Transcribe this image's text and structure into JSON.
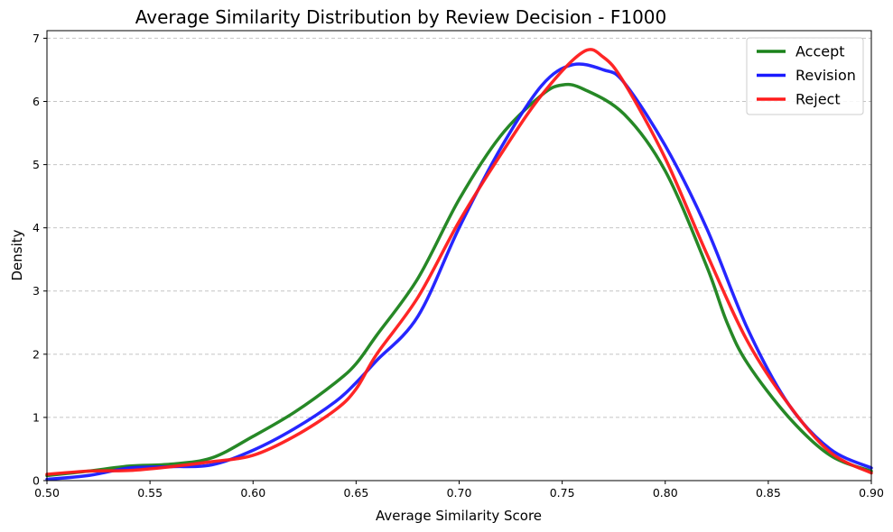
{
  "chart_data": {
    "type": "line",
    "title": "Average Similarity Distribution by Review Decision - F1000",
    "xlabel": "Average Similarity Score",
    "ylabel": "Density",
    "xlim": [
      0.5,
      0.9
    ],
    "ylim": [
      0,
      7.12
    ],
    "xticks": [
      0.5,
      0.55,
      0.6,
      0.65,
      0.7,
      0.75,
      0.8,
      0.85,
      0.9
    ],
    "xtick_labels": [
      "0.50",
      "0.55",
      "0.60",
      "0.65",
      "0.70",
      "0.75",
      "0.80",
      "0.85",
      "0.90"
    ],
    "yticks": [
      0,
      1,
      2,
      3,
      4,
      5,
      6,
      7
    ],
    "ytick_labels": [
      "0",
      "1",
      "2",
      "3",
      "4",
      "5",
      "6",
      "7"
    ],
    "grid": "horizontal-dashed",
    "legend_position": "top-right",
    "series": [
      {
        "name": "Accept",
        "color": "#1a821a",
        "points": [
          [
            0.5,
            0.08
          ],
          [
            0.52,
            0.15
          ],
          [
            0.54,
            0.23
          ],
          [
            0.56,
            0.26
          ],
          [
            0.58,
            0.36
          ],
          [
            0.6,
            0.7
          ],
          [
            0.62,
            1.08
          ],
          [
            0.64,
            1.55
          ],
          [
            0.65,
            1.85
          ],
          [
            0.66,
            2.3
          ],
          [
            0.68,
            3.2
          ],
          [
            0.7,
            4.45
          ],
          [
            0.72,
            5.45
          ],
          [
            0.74,
            6.1
          ],
          [
            0.75,
            6.26
          ],
          [
            0.76,
            6.2
          ],
          [
            0.78,
            5.8
          ],
          [
            0.8,
            4.9
          ],
          [
            0.82,
            3.4
          ],
          [
            0.83,
            2.5
          ],
          [
            0.84,
            1.85
          ],
          [
            0.86,
            1.0
          ],
          [
            0.88,
            0.4
          ],
          [
            0.9,
            0.15
          ]
        ]
      },
      {
        "name": "Revision",
        "color": "#1a1aff",
        "points": [
          [
            0.5,
            0.02
          ],
          [
            0.52,
            0.08
          ],
          [
            0.54,
            0.2
          ],
          [
            0.56,
            0.22
          ],
          [
            0.58,
            0.25
          ],
          [
            0.6,
            0.48
          ],
          [
            0.62,
            0.82
          ],
          [
            0.64,
            1.25
          ],
          [
            0.65,
            1.55
          ],
          [
            0.66,
            1.9
          ],
          [
            0.68,
            2.6
          ],
          [
            0.7,
            4.0
          ],
          [
            0.72,
            5.25
          ],
          [
            0.74,
            6.25
          ],
          [
            0.755,
            6.58
          ],
          [
            0.77,
            6.5
          ],
          [
            0.78,
            6.3
          ],
          [
            0.8,
            5.3
          ],
          [
            0.82,
            4.0
          ],
          [
            0.84,
            2.4
          ],
          [
            0.86,
            1.2
          ],
          [
            0.88,
            0.5
          ],
          [
            0.9,
            0.2
          ]
        ]
      },
      {
        "name": "Reject",
        "color": "#ff1a1a",
        "points": [
          [
            0.5,
            0.1
          ],
          [
            0.52,
            0.15
          ],
          [
            0.54,
            0.16
          ],
          [
            0.56,
            0.22
          ],
          [
            0.58,
            0.3
          ],
          [
            0.6,
            0.4
          ],
          [
            0.62,
            0.7
          ],
          [
            0.64,
            1.12
          ],
          [
            0.65,
            1.45
          ],
          [
            0.66,
            2.0
          ],
          [
            0.68,
            2.9
          ],
          [
            0.7,
            4.1
          ],
          [
            0.72,
            5.15
          ],
          [
            0.74,
            6.1
          ],
          [
            0.76,
            6.78
          ],
          [
            0.77,
            6.7
          ],
          [
            0.78,
            6.3
          ],
          [
            0.8,
            5.1
          ],
          [
            0.82,
            3.6
          ],
          [
            0.84,
            2.2
          ],
          [
            0.86,
            1.2
          ],
          [
            0.88,
            0.45
          ],
          [
            0.9,
            0.12
          ]
        ]
      }
    ]
  }
}
